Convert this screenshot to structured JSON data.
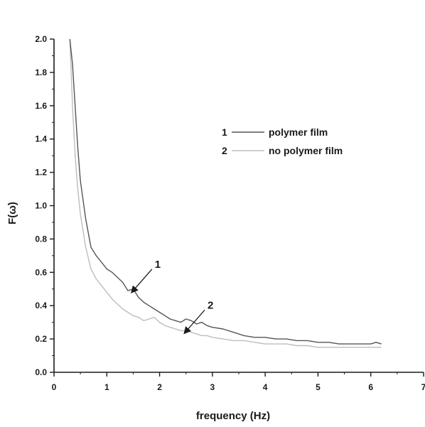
{
  "chart_data": {
    "type": "line",
    "title": "",
    "xlabel": "frequency (Hz)",
    "ylabel": "F(ω)",
    "xlim": [
      0,
      7
    ],
    "ylim": [
      0,
      2.0
    ],
    "x_ticks": [
      "0",
      "1",
      "2",
      "3",
      "4",
      "5",
      "6",
      "7"
    ],
    "y_ticks": [
      "0.0",
      "0.2",
      "0.4",
      "0.6",
      "0.8",
      "1.0",
      "1.2",
      "1.4",
      "1.6",
      "1.8",
      "2.0"
    ],
    "grid": false,
    "legend": {
      "placement": "top-right",
      "entries": [
        {
          "marker": "1",
          "label": "polymer film"
        },
        {
          "marker": "2",
          "label": "no polymer film"
        }
      ]
    },
    "series": [
      {
        "name": "polymer film",
        "color": "#555555",
        "x": [
          0.3,
          0.35,
          0.4,
          0.45,
          0.5,
          0.6,
          0.7,
          0.8,
          0.9,
          1.0,
          1.1,
          1.2,
          1.3,
          1.4,
          1.5,
          1.6,
          1.7,
          1.8,
          1.9,
          2.0,
          2.1,
          2.2,
          2.3,
          2.4,
          2.5,
          2.6,
          2.7,
          2.8,
          2.9,
          3.0,
          3.2,
          3.4,
          3.6,
          3.8,
          4.0,
          4.2,
          4.4,
          4.6,
          4.8,
          5.0,
          5.2,
          5.4,
          5.6,
          5.8,
          6.0,
          6.1,
          6.2
        ],
        "values": [
          2.0,
          1.85,
          1.6,
          1.35,
          1.15,
          0.92,
          0.75,
          0.7,
          0.66,
          0.62,
          0.6,
          0.57,
          0.54,
          0.49,
          0.5,
          0.45,
          0.42,
          0.4,
          0.38,
          0.36,
          0.34,
          0.32,
          0.31,
          0.3,
          0.32,
          0.31,
          0.29,
          0.3,
          0.28,
          0.27,
          0.26,
          0.24,
          0.22,
          0.21,
          0.21,
          0.2,
          0.2,
          0.19,
          0.19,
          0.18,
          0.18,
          0.17,
          0.17,
          0.17,
          0.17,
          0.18,
          0.17
        ]
      },
      {
        "name": "no polymer film",
        "color": "#bdbdbd",
        "x": [
          0.3,
          0.35,
          0.4,
          0.45,
          0.5,
          0.6,
          0.7,
          0.8,
          0.9,
          1.0,
          1.1,
          1.2,
          1.3,
          1.4,
          1.5,
          1.6,
          1.7,
          1.8,
          1.9,
          2.0,
          2.1,
          2.2,
          2.3,
          2.4,
          2.5,
          2.6,
          2.7,
          2.8,
          2.9,
          3.0,
          3.2,
          3.4,
          3.6,
          3.8,
          4.0,
          4.2,
          4.4,
          4.6,
          4.8,
          5.0,
          5.2,
          5.4,
          5.6,
          5.8,
          6.0,
          6.1,
          6.2
        ],
        "values": [
          2.0,
          1.6,
          1.3,
          1.1,
          0.95,
          0.75,
          0.62,
          0.56,
          0.52,
          0.48,
          0.44,
          0.41,
          0.38,
          0.36,
          0.34,
          0.33,
          0.31,
          0.32,
          0.33,
          0.3,
          0.28,
          0.27,
          0.26,
          0.25,
          0.25,
          0.24,
          0.23,
          0.22,
          0.22,
          0.21,
          0.2,
          0.19,
          0.19,
          0.18,
          0.17,
          0.17,
          0.17,
          0.16,
          0.16,
          0.15,
          0.15,
          0.15,
          0.15,
          0.15,
          0.15,
          0.15,
          0.15
        ]
      }
    ],
    "annotations": [
      {
        "text": "1",
        "series": 0,
        "points_to_x": 1.45
      },
      {
        "text": "2",
        "series": 1,
        "points_to_x": 2.45
      }
    ]
  }
}
